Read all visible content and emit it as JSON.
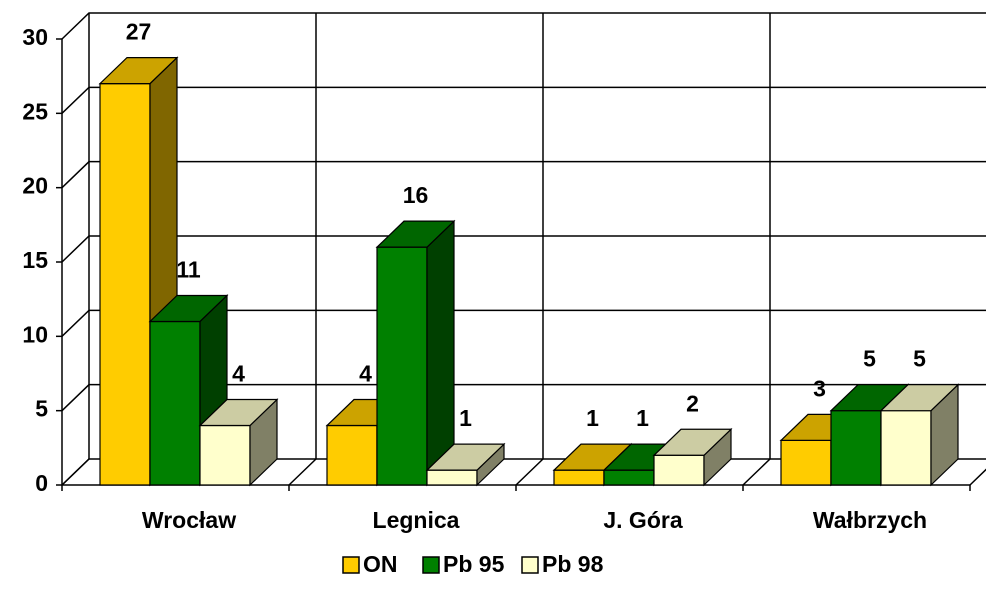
{
  "chart_data": {
    "type": "bar3d",
    "categories": [
      "Wrocław",
      "Legnica",
      "J. Góra",
      "Wałbrzych"
    ],
    "series": [
      {
        "name": "ON",
        "color": "#FFCC00",
        "values": [
          27,
          4,
          1,
          3
        ]
      },
      {
        "name": "Pb 95",
        "color": "#008000",
        "values": [
          11,
          16,
          1,
          5
        ]
      },
      {
        "name": "Pb 98",
        "color": "#FFFFCC",
        "values": [
          4,
          1,
          2,
          5
        ]
      }
    ],
    "ylim": [
      0,
      30
    ],
    "yticks": [
      0,
      5,
      10,
      15,
      20,
      25,
      30
    ],
    "grid": true,
    "legend": "bottom"
  }
}
